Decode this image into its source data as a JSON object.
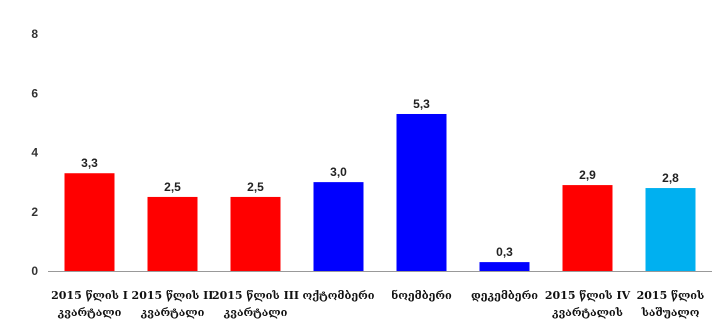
{
  "chart_data": {
    "type": "bar",
    "title": "",
    "xlabel": "",
    "ylabel": "",
    "ylim": [
      0,
      8
    ],
    "yticks": [
      "0",
      "2",
      "4",
      "6",
      "8"
    ],
    "grid": false,
    "categories": [
      [
        "2015 წლის I",
        "კვარტალი"
      ],
      [
        "2015 წლის II",
        "კვარტალი"
      ],
      [
        "2015 წლის III",
        "კვარტალი"
      ],
      [
        "ოქტომბერი"
      ],
      [
        "ნოემბერი"
      ],
      [
        "დეკემბერი"
      ],
      [
        "2015 წლის IV",
        "კვარტალის"
      ],
      [
        "2015 წლის",
        "საშუალო"
      ]
    ],
    "values": [
      3.3,
      2.5,
      2.5,
      3.0,
      5.3,
      0.3,
      2.9,
      2.8
    ],
    "value_labels": [
      "3,3",
      "2,5",
      "2,5",
      "3,0",
      "5,3",
      "0,3",
      "2,9",
      "2,8"
    ],
    "bar_colors": [
      "#ff0000",
      "#ff0000",
      "#ff0000",
      "#0000ff",
      "#0000ff",
      "#0000ff",
      "#ff0000",
      "#00b0f0"
    ]
  },
  "colors": {
    "axis": "#999999",
    "red": "#ff0000",
    "blue": "#0000ff",
    "light_blue": "#00b0f0"
  }
}
